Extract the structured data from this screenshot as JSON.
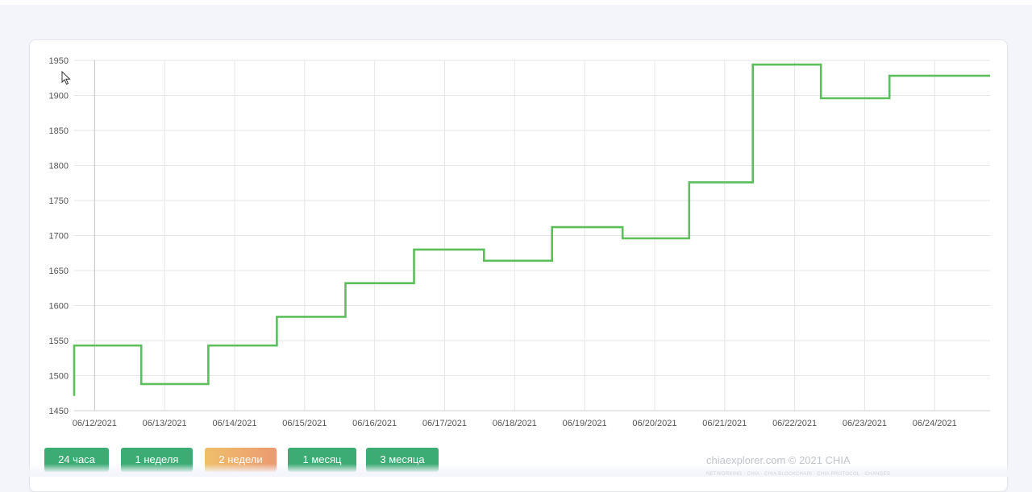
{
  "chart_data": {
    "type": "line",
    "interpolation": "step",
    "title": "",
    "xlabel": "",
    "ylabel": "",
    "ylim": [
      1450,
      1950
    ],
    "yticks": [
      1950,
      1900,
      1850,
      1800,
      1750,
      1700,
      1650,
      1600,
      1550,
      1500,
      1450
    ],
    "xlim": [
      "2021-06-11T17:00",
      "2021-06-24T19:00"
    ],
    "xticks": [
      "06/12/2021",
      "06/13/2021",
      "06/14/2021",
      "06/15/2021",
      "06/16/2021",
      "06/17/2021",
      "06/18/2021",
      "06/19/2021",
      "06/20/2021",
      "06/21/2021",
      "06/22/2021",
      "06/23/2021",
      "06/24/2021"
    ],
    "grid": true,
    "series": [
      {
        "color": "#5cbf5c",
        "points": [
          [
            "2021-06-11T17:00",
            1471
          ],
          [
            "2021-06-11T17:00",
            1543
          ],
          [
            "2021-06-12T16:00",
            1488
          ],
          [
            "2021-06-13T15:00",
            1543
          ],
          [
            "2021-06-14T14:30",
            1584
          ],
          [
            "2021-06-15T14:00",
            1632
          ],
          [
            "2021-06-16T13:30",
            1680
          ],
          [
            "2021-06-17T13:30",
            1664
          ],
          [
            "2021-06-18T12:50",
            1712
          ],
          [
            "2021-06-19T13:00",
            1696
          ],
          [
            "2021-06-20T11:50",
            1776
          ],
          [
            "2021-06-21T09:40",
            1944
          ],
          [
            "2021-06-22T09:00",
            1896
          ],
          [
            "2021-06-23T08:30",
            1928
          ],
          [
            "2021-06-24T19:00",
            1928
          ]
        ]
      }
    ]
  },
  "buttons": [
    {
      "label": "24 часа",
      "style": "green"
    },
    {
      "label": "1 неделя",
      "style": "green"
    },
    {
      "label": "2 недели",
      "style": "orange"
    },
    {
      "label": "1 месяц",
      "style": "green"
    },
    {
      "label": "3 месяца",
      "style": "green"
    }
  ],
  "footer": {
    "copyright": "chiaexplorer.com © 2021 CHIA",
    "links": "NETWORKING · CHIA · CHIA BLOCKCHAIN · CHIA PROTOCOL · CHANGES"
  },
  "colors": {
    "line": "#5cbf5c",
    "button_green": "#3cac74",
    "grid": "#e6e6e6"
  }
}
